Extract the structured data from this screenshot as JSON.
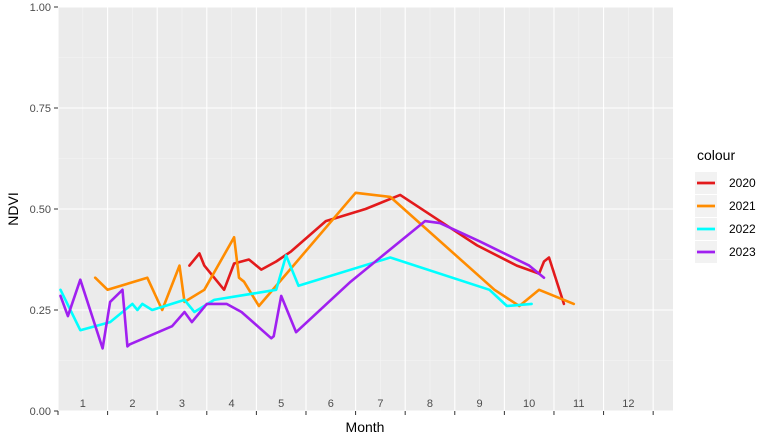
{
  "chart_data": {
    "type": "line",
    "xlabel": "Month",
    "ylabel": "NDVI",
    "ylim": [
      0,
      1
    ],
    "xlim": [
      0,
      12.4
    ],
    "y_ticks": [
      "0.00",
      "0.25",
      "0.50",
      "0.75",
      "1.00"
    ],
    "y_tick_values": [
      0,
      0.25,
      0.5,
      0.75,
      1
    ],
    "month_labels": [
      "1",
      "2",
      "3",
      "4",
      "5",
      "6",
      "7",
      "8",
      "9",
      "10",
      "11",
      "12"
    ],
    "grid": true,
    "panel_background": "#ebebeb",
    "legend": {
      "title": "colour",
      "placement": "right"
    },
    "series": [
      {
        "name": "2020",
        "color": "#e31a1c",
        "x": [
          2.65,
          2.85,
          2.95,
          3.35,
          3.55,
          3.85,
          4.1,
          4.4,
          4.7,
          5.4,
          6.2,
          6.9,
          8.2,
          8.45,
          9.25,
          9.7,
          9.8,
          9.9,
          10.2
        ],
        "y": [
          0.36,
          0.39,
          0.36,
          0.3,
          0.365,
          0.375,
          0.35,
          0.37,
          0.395,
          0.47,
          0.5,
          0.535,
          0.43,
          0.41,
          0.36,
          0.34,
          0.37,
          0.38,
          0.265
        ]
      },
      {
        "name": "2021",
        "color": "#ff8c00",
        "x": [
          0.75,
          1,
          1.8,
          2.1,
          2.45,
          2.55,
          2.95,
          3.55,
          3.65,
          3.75,
          4.05,
          6,
          6.7,
          8.8,
          9.3,
          9.7,
          10.4
        ],
        "y": [
          0.33,
          0.3,
          0.33,
          0.25,
          0.36,
          0.27,
          0.3,
          0.43,
          0.33,
          0.32,
          0.26,
          0.54,
          0.53,
          0.3,
          0.26,
          0.3,
          0.265
        ],
        "y_note": ""
      },
      {
        "name": "2022",
        "color": "#00ffff",
        "x": [
          0.05,
          0.45,
          1.05,
          1.5,
          1.6,
          1.7,
          1.9,
          2.55,
          2.75,
          3.15,
          4.4,
          4.6,
          4.85,
          6.7,
          8.7,
          9.05,
          9.55
        ],
        "y": [
          0.3,
          0.2,
          0.22,
          0.265,
          0.25,
          0.265,
          0.25,
          0.275,
          0.245,
          0.275,
          0.3,
          0.385,
          0.31,
          0.38,
          0.3,
          0.26,
          0.265
        ]
      },
      {
        "name": "2023",
        "color": "#a020f0",
        "x": [
          0.05,
          0.2,
          0.45,
          0.9,
          1.05,
          1.3,
          1.4,
          1.45,
          2.3,
          2.55,
          2.7,
          3.0,
          3.4,
          3.7,
          4.3,
          4.35,
          4.5,
          4.8,
          5.9,
          7.4,
          7.7,
          8.5,
          9.5,
          9.8
        ],
        "y": [
          0.285,
          0.235,
          0.325,
          0.155,
          0.27,
          0.3,
          0.16,
          0.165,
          0.21,
          0.245,
          0.22,
          0.265,
          0.265,
          0.245,
          0.18,
          0.185,
          0.285,
          0.195,
          0.32,
          0.47,
          0.465,
          0.42,
          0.36,
          0.33
        ]
      }
    ]
  }
}
